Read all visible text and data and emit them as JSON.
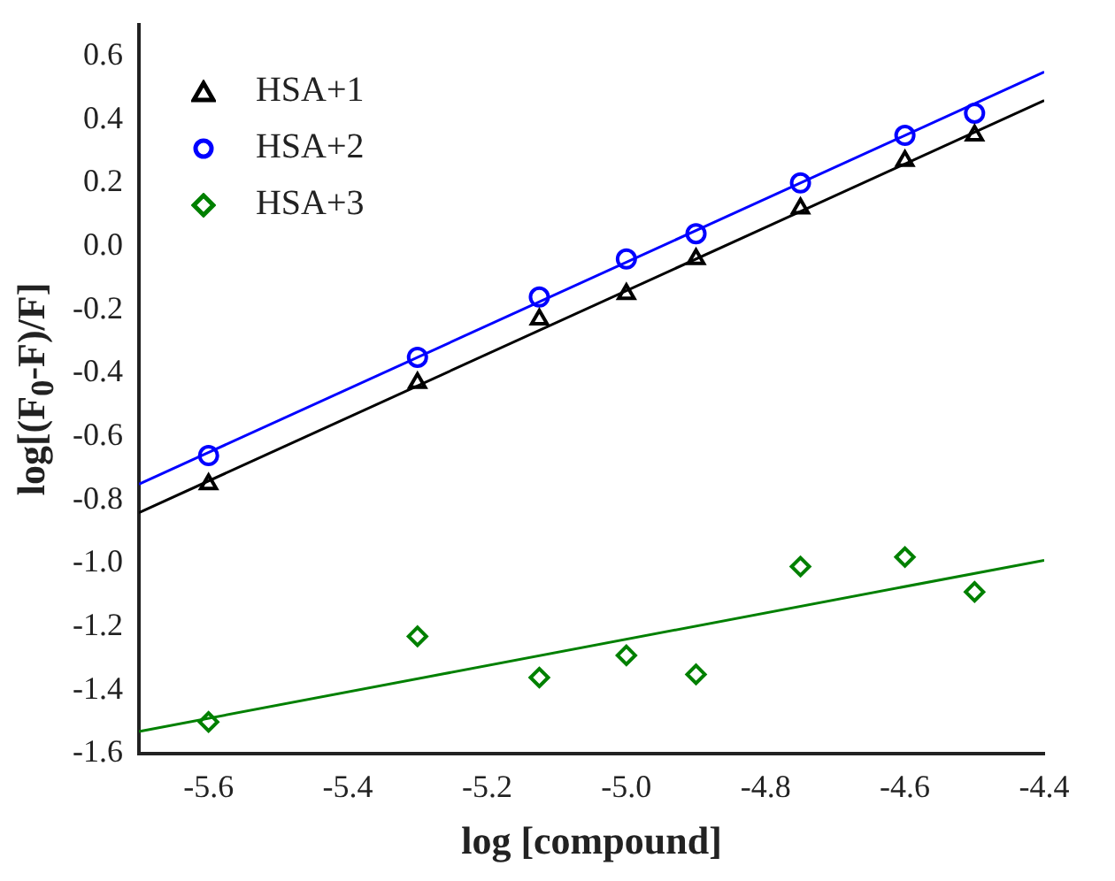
{
  "chart_data": {
    "type": "scatter",
    "xlabel": "log [compound]",
    "ylabel": "log[(F$_{0}$-F)/F]",
    "xlim": [
      -5.7,
      -4.4
    ],
    "xticks": [
      -5.6,
      -5.4,
      -5.2,
      {
        "value": -5,
        "label": "-5.0"
      },
      -4.8,
      -4.6,
      -4.4
    ],
    "ylim": [
      -1.6,
      0.7
    ],
    "yticks": [
      -1.6,
      -1.4,
      -1.2,
      {
        "value": -1,
        "label": "-1.0"
      },
      -0.8,
      -0.6,
      -0.4,
      -0.2,
      {
        "value": 0,
        "label": "0.0"
      },
      0.2,
      0.4,
      0.6
    ],
    "legend": "top left",
    "grid": false,
    "series": [
      {
        "name": "HSA+1",
        "color": "#000000",
        "marker": "triangle",
        "x": [
          -5.6,
          -5.3,
          -5.125,
          -5.0,
          -4.9,
          -4.75,
          -4.6,
          -4.5
        ],
        "values": [
          -0.75,
          -0.43,
          -0.23,
          -0.15,
          -0.04,
          0.12,
          0.27,
          0.35
        ]
      },
      {
        "name": "HSA+2",
        "color": "#0000ff",
        "marker": "circle",
        "x": [
          -5.6,
          -5.3,
          -5.125,
          -5.0,
          -4.9,
          -4.75,
          -4.6,
          -4.5
        ],
        "values": [
          -0.66,
          -0.35,
          -0.16,
          -0.04,
          0.04,
          0.2,
          0.35,
          0.42
        ]
      },
      {
        "name": "HSA+3",
        "color": "#008000",
        "marker": "diamond",
        "x": [
          -5.6,
          -5.3,
          -5.125,
          -5.0,
          -4.9,
          -4.75,
          -4.6,
          -4.5
        ],
        "values": [
          -1.5,
          -1.23,
          -1.36,
          -1.29,
          -1.35,
          -1.01,
          -0.98,
          -1.09
        ]
      },
      {
        "type": "line",
        "color": "#000000",
        "marker": "none",
        "x": [
          -5.7,
          -4.4
        ],
        "values": [
          -0.84,
          0.46
        ]
      },
      {
        "type": "line",
        "color": "#0000ff",
        "marker": "none",
        "x": [
          -5.7,
          -4.4
        ],
        "values": [
          -0.75,
          0.55
        ]
      },
      {
        "type": "line",
        "color": "#008000",
        "marker": "none",
        "x": [
          -5.7,
          -4.4
        ],
        "values": [
          -1.53,
          -0.99
        ]
      }
    ]
  }
}
